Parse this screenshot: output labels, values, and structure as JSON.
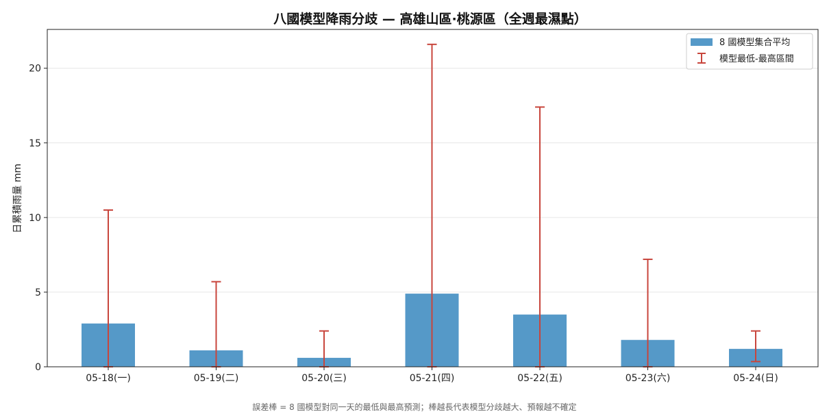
{
  "chart_data": {
    "type": "bar",
    "title": "八國模型降雨分歧 — 高雄山區·桃源區（全週最濕點）",
    "xlabel": "",
    "ylabel": "日累積雨量 mm",
    "categories": [
      "05-18(一)",
      "05-19(二)",
      "05-20(三)",
      "05-21(四)",
      "05-22(五)",
      "05-23(六)",
      "05-24(日)"
    ],
    "series": [
      {
        "name": "8 國模型集合平均",
        "values": [
          2.9,
          1.1,
          0.6,
          4.9,
          3.5,
          1.8,
          1.2
        ],
        "color": "#5599c8"
      }
    ],
    "error_range": {
      "name": "模型最低-最高區間",
      "low": [
        0,
        0,
        0,
        0,
        0,
        0,
        0.35
      ],
      "high": [
        10.5,
        5.7,
        2.4,
        21.6,
        17.4,
        7.2,
        2.4
      ],
      "color": "#c8453c"
    },
    "yticks": [
      0,
      5,
      10,
      15,
      20
    ],
    "ylim": [
      0,
      22.6
    ],
    "grid": "horizontal",
    "legend_position": "top-right"
  },
  "caption": "誤差棒 = 8 國模型對同一天的最低與最高預測；棒越長代表模型分歧越大、預報越不確定"
}
